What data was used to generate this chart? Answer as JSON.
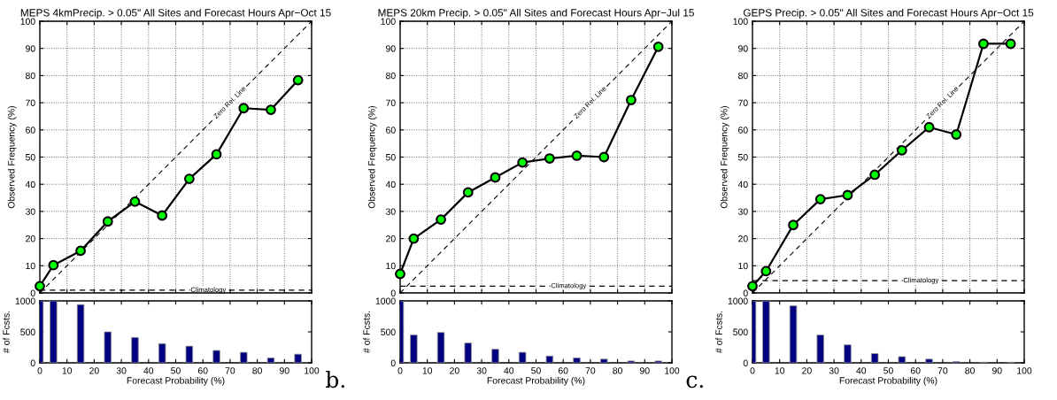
{
  "chart_data": [
    {
      "type": "line",
      "title": "MEPS 4kmPrecip. > 0.05\" All Sites and Forecast Hours Apr−Oct 15",
      "ylabel": "Observed Frequency (%)",
      "xlim": [
        0,
        100
      ],
      "ylim": [
        0,
        100
      ],
      "xticks": [
        0,
        10,
        20,
        30,
        40,
        50,
        60,
        70,
        80,
        90,
        100
      ],
      "yticks": [
        0,
        10,
        20,
        30,
        40,
        50,
        60,
        70,
        80,
        90,
        100
      ],
      "tick_labels": "y",
      "grid": true,
      "series": [
        {
          "color": "#000000",
          "marker": "circle",
          "colors": [
            "#00ff00",
            "#00ff00",
            "#00ff00",
            "#00ff00",
            "#00ff00",
            "#00ff00",
            "#00ff00",
            "#00ff00",
            "#00ff00",
            "#00ff00",
            "#00ff00"
          ],
          "x": [
            0,
            5,
            15,
            25,
            35,
            45,
            55,
            65,
            75,
            85,
            95
          ],
          "values": [
            2.5,
            10.2,
            15.5,
            26.3,
            33.6,
            28.5,
            42,
            51,
            68,
            67.4,
            78.3
          ]
        },
        {
          "name": "Zero Rel. Line",
          "color": "#000000",
          "line_style": "dashed",
          "x": [
            0,
            100
          ],
          "values": [
            0,
            100
          ]
        }
      ],
      "ref_lines": [
        {
          "axis": "y",
          "value": 1,
          "label": "Climatology",
          "color": "#000000",
          "line_style": "dashed"
        }
      ]
    },
    {
      "type": "line",
      "title": "MEPS 20km Precip. > 0.05\" All Sites and Forecast Hours Apr−Jul 15",
      "ylabel": "Observed Frequency (%)",
      "xlim": [
        0,
        100
      ],
      "ylim": [
        0,
        100
      ],
      "xticks": [
        0,
        10,
        20,
        30,
        40,
        50,
        60,
        70,
        80,
        90,
        100
      ],
      "yticks": [
        0,
        10,
        20,
        30,
        40,
        50,
        60,
        70,
        80,
        90,
        100
      ],
      "tick_labels": "y",
      "grid": true,
      "series": [
        {
          "color": "#000000",
          "marker": "circle",
          "colors": [
            "#00ff00",
            "#00ff00",
            "#00ff00",
            "#00ff00",
            "#00ff00",
            "#00ff00",
            "#00ff00",
            "#00ff00",
            "#00ff00",
            "#00ff00",
            "#00ff00"
          ],
          "x": [
            0,
            5,
            15,
            25,
            35,
            45,
            55,
            65,
            75,
            85,
            95
          ],
          "values": [
            7,
            20,
            27,
            37,
            42.5,
            48,
            49.5,
            50.5,
            50,
            71,
            90.6
          ]
        },
        {
          "name": "Zero Rel. Line",
          "color": "#000000",
          "line_style": "dashed",
          "x": [
            0,
            100
          ],
          "values": [
            0,
            100
          ]
        }
      ],
      "ref_lines": [
        {
          "axis": "y",
          "value": 2.5,
          "label": "Climatology",
          "color": "#000000",
          "line_style": "dashed"
        }
      ]
    },
    {
      "type": "line",
      "title": "GEPS Precip. > 0.05\" All Sites and Forecast Hours Apr−Oct 15",
      "ylabel": "Observed Frequency (%)",
      "xlim": [
        0,
        100
      ],
      "ylim": [
        0,
        100
      ],
      "xticks": [
        0,
        10,
        20,
        30,
        40,
        50,
        60,
        70,
        80,
        90,
        100
      ],
      "yticks": [
        0,
        10,
        20,
        30,
        40,
        50,
        60,
        70,
        80,
        90,
        100
      ],
      "tick_labels": "y",
      "grid": true,
      "series": [
        {
          "color": "#000000",
          "marker": "circle",
          "colors": [
            "#00ff00",
            "#00ff00",
            "#00ff00",
            "#00ff00",
            "#00ff00",
            "#00ff00",
            "#00ff00",
            "#00ff00",
            "#00ff00",
            "#00ff00",
            "#00ff00"
          ],
          "x": [
            0,
            5,
            15,
            25,
            35,
            45,
            55,
            65,
            75,
            85,
            95
          ],
          "values": [
            2.5,
            8,
            25,
            34.5,
            36,
            43.5,
            52.5,
            61,
            58.3,
            91.7,
            91.7
          ]
        },
        {
          "name": "Zero Rel. Line",
          "color": "#000000",
          "line_style": "dashed",
          "x": [
            0,
            100
          ],
          "values": [
            0,
            100
          ]
        }
      ],
      "ref_lines": [
        {
          "axis": "y",
          "value": 4.5,
          "label": "Climatology",
          "color": "#000000",
          "line_style": "dashed"
        }
      ]
    },
    {
      "type": "bar",
      "xlabel": "Forecast Probability (%)",
      "ylabel": "# of Fcsts.",
      "xlim": [
        0,
        100
      ],
      "ylim": [
        0,
        1000
      ],
      "xticks": [
        0,
        10,
        20,
        30,
        40,
        50,
        60,
        70,
        80,
        90,
        100
      ],
      "yticks": [
        0,
        500,
        1000
      ],
      "annotations": [
        "b."
      ],
      "series": [
        {
          "color": "#000080",
          "x": [
            0,
            5,
            15,
            25,
            35,
            45,
            55,
            65,
            75,
            85,
            95
          ],
          "values": [
            1000,
            1000,
            940,
            500,
            410,
            310,
            270,
            200,
            170,
            80,
            140
          ]
        }
      ]
    },
    {
      "type": "bar",
      "xlabel": "Forecast Probability (%)",
      "ylabel": "# of Fcsts.",
      "xlim": [
        0,
        100
      ],
      "ylim": [
        0,
        1000
      ],
      "xticks": [
        0,
        10,
        20,
        30,
        40,
        50,
        60,
        70,
        80,
        90,
        100
      ],
      "yticks": [
        0,
        500,
        1000
      ],
      "annotations": [
        "c."
      ],
      "series": [
        {
          "color": "#000080",
          "x": [
            0,
            5,
            15,
            25,
            35,
            45,
            55,
            65,
            75,
            85,
            95
          ],
          "values": [
            1000,
            450,
            490,
            320,
            220,
            170,
            110,
            80,
            60,
            30,
            30
          ]
        }
      ]
    },
    {
      "type": "bar",
      "xlabel": "Forecast Probability (%)",
      "ylabel": "# of Fcsts.",
      "xlim": [
        0,
        100
      ],
      "ylim": [
        0,
        1000
      ],
      "xticks": [
        0,
        10,
        20,
        30,
        40,
        50,
        60,
        70,
        80,
        90,
        100
      ],
      "yticks": [
        0,
        500,
        1000
      ],
      "series": [
        {
          "color": "#000080",
          "x": [
            0,
            5,
            15,
            25,
            35,
            45,
            55,
            65,
            75,
            85,
            95
          ],
          "values": [
            1000,
            1000,
            920,
            450,
            290,
            150,
            100,
            60,
            20,
            10,
            10
          ]
        }
      ]
    }
  ]
}
